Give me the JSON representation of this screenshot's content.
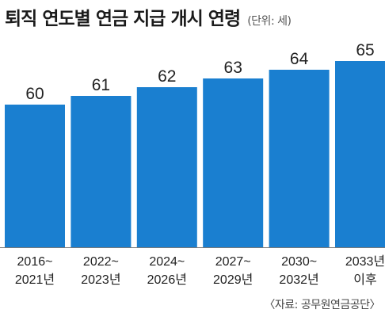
{
  "chart_data": {
    "type": "bar",
    "title": "퇴직 연도별 연금 지급 개시 연령",
    "unit": "(단위: 세)",
    "categories": [
      [
        "2016~",
        "2021년"
      ],
      [
        "2022~",
        "2023년"
      ],
      [
        "2024~",
        "2026년"
      ],
      [
        "2027~",
        "2029년"
      ],
      [
        "2030~",
        "2032년"
      ],
      [
        "2033년",
        "이후"
      ]
    ],
    "values": [
      60,
      61,
      62,
      63,
      64,
      65
    ],
    "bar_color": "#1a7fd0",
    "grid": false
  },
  "source": "〈자료: 공무원연금공단〉"
}
